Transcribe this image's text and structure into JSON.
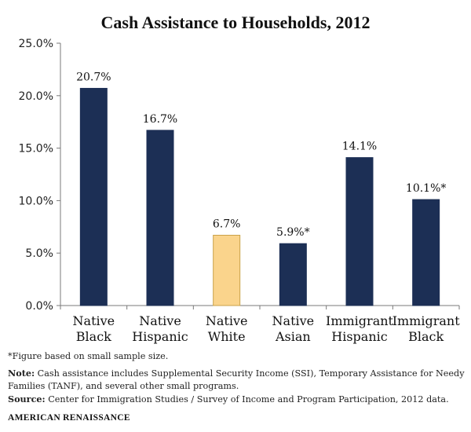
{
  "chart_data": {
    "type": "bar",
    "title": "Cash Assistance to Households, 2012",
    "categories": [
      [
        "Native",
        "Black"
      ],
      [
        "Native",
        "Hispanic"
      ],
      [
        "Native",
        "White"
      ],
      [
        "Native",
        "Asian"
      ],
      [
        "Immigrant",
        "Hispanic"
      ],
      [
        "Immigrant",
        "Black"
      ]
    ],
    "values": [
      20.7,
      16.7,
      6.7,
      5.9,
      14.1,
      10.1
    ],
    "value_labels": [
      "20.7%",
      "16.7%",
      "6.7%",
      "5.9%*",
      "14.1%",
      "10.1%*"
    ],
    "colors": [
      "#1c2f55",
      "#1c2f55",
      "#fad48c",
      "#1c2f55",
      "#1c2f55",
      "#1c2f55"
    ],
    "bar_edge_colors": [
      "#1c2f55",
      "#1c2f55",
      "#c9a24a",
      "#1c2f55",
      "#1c2f55",
      "#1c2f55"
    ],
    "ylim": [
      0,
      25
    ],
    "yticks": [
      0,
      5,
      10,
      15,
      20,
      25
    ],
    "ytick_labels": [
      "0.0%",
      "5.0%",
      "10.0%",
      "15.0%",
      "20.0%",
      "25.0%"
    ],
    "xlabel": "",
    "ylabel": "",
    "grid": false
  },
  "notes": {
    "figure_note": "*Figure based on small sample size.",
    "note_label": "Note:",
    "note_text": " Cash assistance includes Supplemental Security Income (SSI), Temporary Assistance for Needy Families (TANF), and several other small programs.",
    "source_label": "Source:",
    "source_text": " Center for Immigration Studies / Survey of Income and Program Participation, 2012 data."
  },
  "brand": "AMERICAN RENAISSANCE"
}
